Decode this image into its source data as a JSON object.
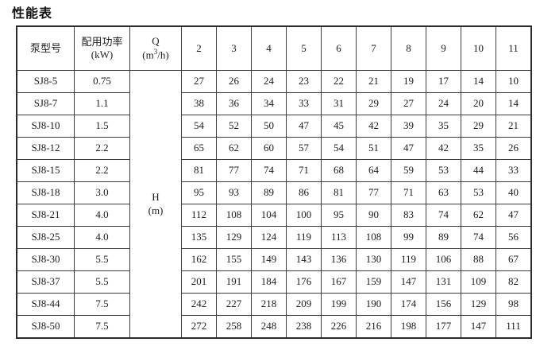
{
  "title": "性能表",
  "table": {
    "headers": {
      "pump_model": "泵型号",
      "power_line1": "配用功率",
      "power_line2": "(kW)",
      "q_line1": "Q",
      "q_unit_pre": "(m",
      "q_unit_sup": "3",
      "q_unit_post": "/h)",
      "flow_columns": [
        "2",
        "3",
        "4",
        "5",
        "6",
        "7",
        "8",
        "9",
        "10",
        "11"
      ]
    },
    "h_cell_line1": "H",
    "h_cell_line2": "(m)",
    "rows": [
      {
        "model": "SJ8-5",
        "power": "0.75",
        "values": [
          27,
          26,
          24,
          23,
          22,
          21,
          19,
          17,
          14,
          10
        ]
      },
      {
        "model": "SJ8-7",
        "power": "1.1",
        "values": [
          38,
          36,
          34,
          33,
          31,
          29,
          27,
          24,
          20,
          14
        ]
      },
      {
        "model": "SJ8-10",
        "power": "1.5",
        "values": [
          54,
          52,
          50,
          47,
          45,
          42,
          39,
          35,
          29,
          21
        ]
      },
      {
        "model": "SJ8-12",
        "power": "2.2",
        "values": [
          65,
          62,
          60,
          57,
          54,
          51,
          47,
          42,
          35,
          26
        ]
      },
      {
        "model": "SJ8-15",
        "power": "2.2",
        "values": [
          81,
          77,
          74,
          71,
          68,
          64,
          59,
          53,
          44,
          33
        ]
      },
      {
        "model": "SJ8-18",
        "power": "3.0",
        "values": [
          95,
          93,
          89,
          86,
          81,
          77,
          71,
          63,
          53,
          40
        ]
      },
      {
        "model": "SJ8-21",
        "power": "4.0",
        "values": [
          112,
          108,
          104,
          100,
          95,
          90,
          83,
          74,
          62,
          47
        ]
      },
      {
        "model": "SJ8-25",
        "power": "4.0",
        "values": [
          135,
          129,
          124,
          119,
          113,
          108,
          99,
          89,
          74,
          56
        ]
      },
      {
        "model": "SJ8-30",
        "power": "5.5",
        "values": [
          162,
          155,
          149,
          143,
          136,
          130,
          119,
          106,
          88,
          67
        ]
      },
      {
        "model": "SJ8-37",
        "power": "5.5",
        "values": [
          201,
          191,
          184,
          176,
          167,
          159,
          147,
          131,
          109,
          82
        ]
      },
      {
        "model": "SJ8-44",
        "power": "7.5",
        "values": [
          242,
          227,
          218,
          209,
          199,
          190,
          174,
          156,
          129,
          98
        ]
      },
      {
        "model": "SJ8-50",
        "power": "7.5",
        "values": [
          272,
          258,
          248,
          238,
          226,
          216,
          198,
          177,
          147,
          111
        ]
      }
    ]
  },
  "chart_data": {
    "type": "table",
    "title": "性能表",
    "columns": [
      "泵型号",
      "配用功率 (kW)",
      "Q (m3/h)",
      "2",
      "3",
      "4",
      "5",
      "6",
      "7",
      "8",
      "9",
      "10",
      "11"
    ],
    "value_quantity": "H (m)"
  }
}
